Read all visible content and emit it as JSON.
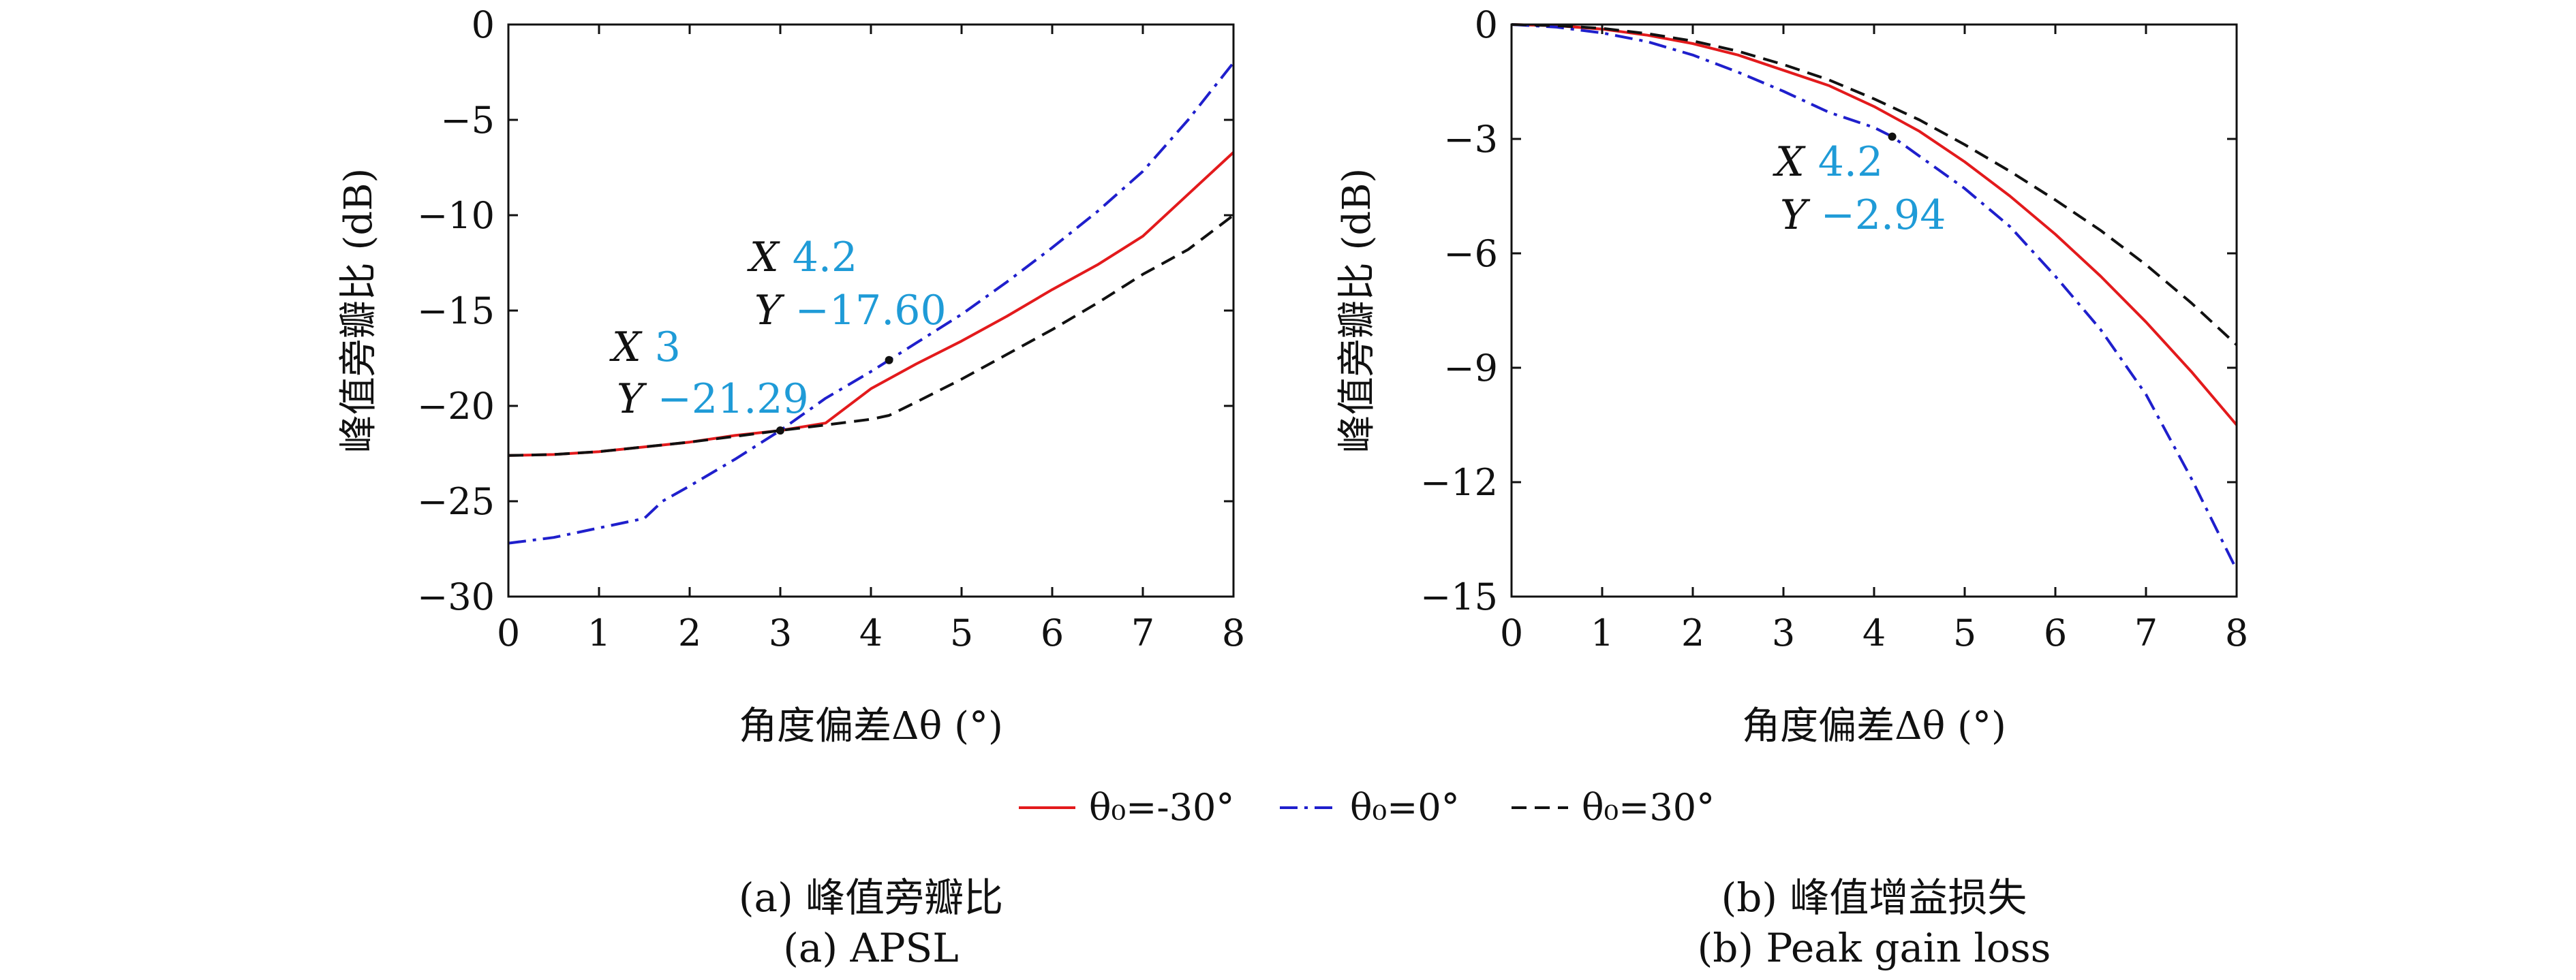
{
  "legend": [
    {
      "label": "θ₀=-30°",
      "color": "#e31a1c",
      "dash": "solid"
    },
    {
      "label": "θ₀=0°",
      "color": "#1f1fcc",
      "dash": "dashdot"
    },
    {
      "label": "θ₀=30°",
      "color": "#111111",
      "dash": "dashed"
    }
  ],
  "chart_data": [
    {
      "type": "line",
      "caption_cn": "(a) 峰值旁瓣比",
      "caption_en": "(a) APSL",
      "xlabel": "角度偏差Δθ (°)",
      "ylabel": "峰值旁瓣比 (dB)",
      "xlim": [
        0,
        8
      ],
      "ylim": [
        -30,
        0
      ],
      "xticks": [
        0,
        1,
        2,
        3,
        4,
        5,
        6,
        7,
        8
      ],
      "yticks": [
        0,
        -5,
        -10,
        -15,
        -20,
        -25,
        -30
      ],
      "ytick_labels": [
        "0",
        "−5",
        "−10",
        "−15",
        "−20",
        "−25",
        "−30"
      ],
      "grid": false,
      "series": [
        {
          "name": "θ₀=-30°",
          "color": "#e31a1c",
          "dash": "solid",
          "x": [
            0,
            0.5,
            1,
            1.5,
            2,
            2.5,
            3,
            3.5,
            4,
            4.5,
            5,
            5.5,
            6,
            6.5,
            7,
            7.5,
            8
          ],
          "y": [
            -22.6,
            -22.55,
            -22.4,
            -22.15,
            -21.9,
            -21.55,
            -21.29,
            -20.9,
            -19.1,
            -17.8,
            -16.6,
            -15.3,
            -13.9,
            -12.6,
            -11.1,
            -8.9,
            -6.7
          ]
        },
        {
          "name": "θ₀=0°",
          "color": "#1f1fcc",
          "dash": "dashdot",
          "x": [
            0,
            0.5,
            1,
            1.5,
            1.7,
            2,
            2.5,
            3,
            3.5,
            4,
            4.2,
            4.5,
            5,
            5.5,
            6,
            6.5,
            7,
            7.5,
            8
          ],
          "y": [
            -27.2,
            -26.9,
            -26.4,
            -25.9,
            -25.0,
            -24.2,
            -22.8,
            -21.29,
            -19.6,
            -18.2,
            -17.6,
            -16.7,
            -15.2,
            -13.5,
            -11.7,
            -9.8,
            -7.7,
            -5.0,
            -2.0
          ]
        },
        {
          "name": "θ₀=30°",
          "color": "#111111",
          "dash": "dashed",
          "x": [
            0,
            0.5,
            1,
            1.5,
            2,
            2.5,
            3,
            3.5,
            4,
            4.2,
            4.5,
            5,
            5.5,
            6,
            6.5,
            7,
            7.5,
            8
          ],
          "y": [
            -22.6,
            -22.55,
            -22.4,
            -22.15,
            -21.9,
            -21.6,
            -21.29,
            -21.0,
            -20.7,
            -20.5,
            -19.8,
            -18.6,
            -17.3,
            -16.0,
            -14.6,
            -13.1,
            -11.8,
            -10.0
          ]
        }
      ],
      "annotations": [
        {
          "x": 3,
          "y": -21.29,
          "x_label": "X",
          "x_value": "3",
          "y_label": "Y",
          "y_value": "−21.29"
        },
        {
          "x": 4.2,
          "y": -17.6,
          "x_label": "X",
          "x_value": "4.2",
          "y_label": "Y",
          "y_value": "−17.60"
        }
      ]
    },
    {
      "type": "line",
      "caption_cn": "(b) 峰值增益损失",
      "caption_en": "(b) Peak gain loss",
      "xlabel": "角度偏差Δθ (°)",
      "ylabel": "峰值旁瓣比 (dB)",
      "xlim": [
        0,
        8
      ],
      "ylim": [
        -15,
        0
      ],
      "xticks": [
        0,
        1,
        2,
        3,
        4,
        5,
        6,
        7,
        8
      ],
      "yticks": [
        0,
        -3,
        -6,
        -9,
        -12,
        -15
      ],
      "ytick_labels": [
        "0",
        "−3",
        "−6",
        "−9",
        "−12",
        "−15"
      ],
      "grid": false,
      "series": [
        {
          "name": "θ₀=-30°",
          "color": "#e31a1c",
          "dash": "solid",
          "x": [
            0,
            0.5,
            1,
            1.5,
            2,
            2.5,
            3,
            3.5,
            4,
            4.5,
            5,
            5.5,
            6,
            6.5,
            7,
            7.5,
            8
          ],
          "y": [
            0,
            -0.03,
            -0.12,
            -0.28,
            -0.5,
            -0.8,
            -1.2,
            -1.6,
            -2.15,
            -2.8,
            -3.6,
            -4.5,
            -5.5,
            -6.6,
            -7.8,
            -9.1,
            -10.5
          ]
        },
        {
          "name": "θ₀=0°",
          "color": "#1f1fcc",
          "dash": "dashdot",
          "x": [
            0,
            0.5,
            1,
            1.5,
            2,
            2.5,
            3,
            3.5,
            4,
            4.2,
            4.5,
            5,
            5.5,
            6,
            6.5,
            7,
            7.5,
            8
          ],
          "y": [
            0,
            -0.07,
            -0.22,
            -0.45,
            -0.8,
            -1.25,
            -1.75,
            -2.3,
            -2.7,
            -2.94,
            -3.45,
            -4.3,
            -5.3,
            -6.6,
            -8.0,
            -9.7,
            -11.9,
            -14.3
          ]
        },
        {
          "name": "θ₀=30°",
          "color": "#111111",
          "dash": "dashed",
          "x": [
            0,
            0.5,
            1,
            1.5,
            2,
            2.5,
            3,
            3.5,
            4,
            4.5,
            5,
            5.5,
            6,
            6.5,
            7,
            7.5,
            8
          ],
          "y": [
            0,
            -0.03,
            -0.1,
            -0.24,
            -0.43,
            -0.7,
            -1.05,
            -1.45,
            -1.95,
            -2.5,
            -3.15,
            -3.85,
            -4.6,
            -5.4,
            -6.3,
            -7.3,
            -8.4
          ]
        }
      ],
      "annotations": [
        {
          "x": 4.2,
          "y": -2.94,
          "x_label": "X",
          "x_value": "4.2",
          "y_label": "Y",
          "y_value": "−2.94"
        }
      ]
    }
  ]
}
